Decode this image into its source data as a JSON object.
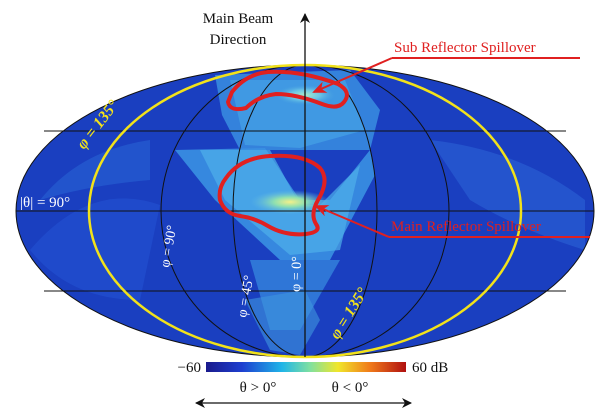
{
  "title_top": {
    "line1": "Main Beam",
    "line2": "Direction"
  },
  "annotations": {
    "sub_reflector": "Sub Reflector Spillover",
    "main_reflector": "Main Reflector Spillover"
  },
  "map_labels": {
    "theta_90": "|θ| = 90°",
    "phi_0": "φ = 0°",
    "phi_45": "φ = 45°",
    "phi_90": "φ = 90°",
    "phi_135_left": "φ = 135°",
    "phi_135_right": "φ = 135°"
  },
  "colorbar": {
    "min_label": "−60",
    "max_label": "60 dB"
  },
  "bottom_axis": {
    "left_label": "θ > 0°",
    "right_label": "θ < 0°"
  },
  "colors": {
    "map_background": "#1a3fc0",
    "grid_lines": "#111111",
    "highlight_yellow": "#f2e21a",
    "annotation_red": "#e02020"
  }
}
